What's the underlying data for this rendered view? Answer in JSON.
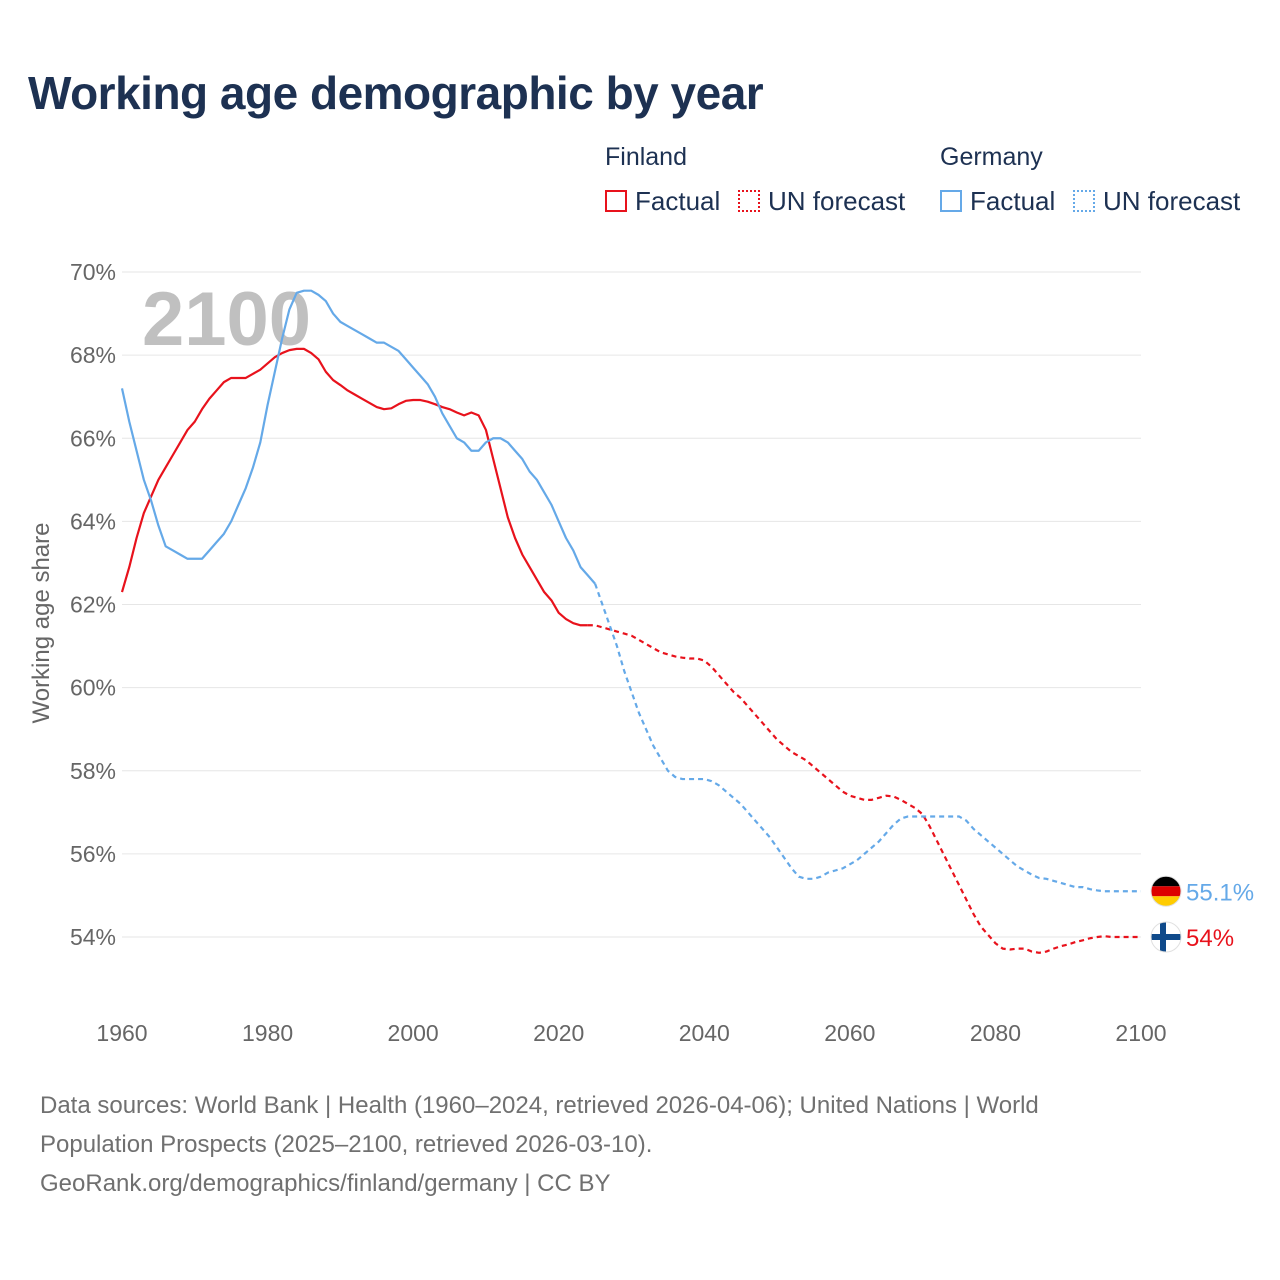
{
  "title": "Working age demographic by year",
  "legend": {
    "finland_group": "Finland",
    "germany_group": "Germany",
    "factual": "Factual",
    "un_forecast": "UN forecast"
  },
  "colors": {
    "finland": "#e8121c",
    "germany": "#65a9e8",
    "title": "#1d3152"
  },
  "footer": {
    "line1": "Data sources: World Bank | Health (1960–2024, retrieved 2026-04-06); United Nations | World",
    "line2": "Population Prospects (2025–2100, retrieved 2026-03-10).",
    "line3": "GeoRank.org/demographics/finland/germany | CC BY"
  },
  "chart_data": {
    "type": "line",
    "title": "Working age demographic by year",
    "xlabel": "",
    "ylabel": "Working age share",
    "xlim": [
      1960,
      2100
    ],
    "ylim": [
      52.5,
      70
    ],
    "y_ticks": [
      54,
      56,
      58,
      60,
      62,
      64,
      66,
      68,
      70
    ],
    "y_tick_labels": [
      "54%",
      "56%",
      "58%",
      "60%",
      "62%",
      "64%",
      "66%",
      "68%",
      "70%"
    ],
    "x_ticks": [
      1960,
      1980,
      2000,
      2020,
      2040,
      2060,
      2080,
      2100
    ],
    "x_tick_labels": [
      "1960",
      "1980",
      "2000",
      "2020",
      "2040",
      "2060",
      "2080",
      "2100"
    ],
    "year_watermark": "2100",
    "grid": true,
    "series": [
      {
        "name": "Finland",
        "color": "#e8121c",
        "end_label": "54%",
        "factual": {
          "years": [
            1960,
            1961,
            1962,
            1963,
            1964,
            1965,
            1966,
            1967,
            1968,
            1969,
            1970,
            1971,
            1972,
            1973,
            1974,
            1975,
            1976,
            1977,
            1978,
            1979,
            1980,
            1981,
            1982,
            1983,
            1984,
            1985,
            1986,
            1987,
            1988,
            1989,
            1990,
            1991,
            1992,
            1993,
            1994,
            1995,
            1996,
            1997,
            1998,
            1999,
            2000,
            2001,
            2002,
            2003,
            2004,
            2005,
            2006,
            2007,
            2008,
            2009,
            2010,
            2011,
            2012,
            2013,
            2014,
            2015,
            2016,
            2017,
            2018,
            2019,
            2020,
            2021,
            2022,
            2023,
            2024
          ],
          "values": [
            62.3,
            62.9,
            63.6,
            64.2,
            64.6,
            65.0,
            65.3,
            65.6,
            65.9,
            66.2,
            66.4,
            66.7,
            66.95,
            67.15,
            67.35,
            67.45,
            67.45,
            67.45,
            67.55,
            67.65,
            67.8,
            67.95,
            68.05,
            68.12,
            68.15,
            68.15,
            68.05,
            67.9,
            67.6,
            67.4,
            67.28,
            67.15,
            67.05,
            66.95,
            66.85,
            66.75,
            66.7,
            66.72,
            66.82,
            66.9,
            66.92,
            66.92,
            66.88,
            66.82,
            66.75,
            66.7,
            66.62,
            66.55,
            66.62,
            66.55,
            66.2,
            65.5,
            64.8,
            64.1,
            63.6,
            63.2,
            62.9,
            62.6,
            62.3,
            62.1,
            61.8,
            61.65,
            61.55,
            61.5,
            61.5
          ]
        },
        "forecast": {
          "years": [
            2024,
            2025,
            2026,
            2027,
            2028,
            2029,
            2030,
            2031,
            2032,
            2033,
            2034,
            2035,
            2036,
            2037,
            2038,
            2039,
            2040,
            2041,
            2042,
            2043,
            2044,
            2045,
            2046,
            2047,
            2048,
            2049,
            2050,
            2051,
            2052,
            2053,
            2054,
            2055,
            2056,
            2057,
            2058,
            2059,
            2060,
            2061,
            2062,
            2063,
            2064,
            2065,
            2066,
            2067,
            2068,
            2069,
            2070,
            2071,
            2072,
            2073,
            2074,
            2075,
            2076,
            2077,
            2078,
            2079,
            2080,
            2081,
            2082,
            2083,
            2084,
            2085,
            2086,
            2087,
            2088,
            2089,
            2090,
            2091,
            2092,
            2093,
            2094,
            2095,
            2096,
            2097,
            2098,
            2099,
            2100
          ],
          "values": [
            61.5,
            61.5,
            61.45,
            61.4,
            61.35,
            61.3,
            61.25,
            61.15,
            61.05,
            60.95,
            60.85,
            60.8,
            60.75,
            60.72,
            60.7,
            60.7,
            60.65,
            60.5,
            60.3,
            60.1,
            59.9,
            59.75,
            59.55,
            59.35,
            59.15,
            58.95,
            58.75,
            58.6,
            58.45,
            58.35,
            58.25,
            58.1,
            57.95,
            57.8,
            57.65,
            57.5,
            57.4,
            57.35,
            57.3,
            57.3,
            57.35,
            57.4,
            57.38,
            57.3,
            57.2,
            57.1,
            56.95,
            56.65,
            56.3,
            55.95,
            55.6,
            55.25,
            54.9,
            54.55,
            54.25,
            54.05,
            53.85,
            53.72,
            53.7,
            53.72,
            53.72,
            53.65,
            53.62,
            53.65,
            53.72,
            53.78,
            53.82,
            53.88,
            53.92,
            53.97,
            54.0,
            54.02,
            54.0,
            54.0,
            54.0,
            54.0,
            54.0
          ]
        }
      },
      {
        "name": "Germany",
        "color": "#65a9e8",
        "end_label": "55.1%",
        "factual": {
          "years": [
            1960,
            1961,
            1962,
            1963,
            1964,
            1965,
            1966,
            1967,
            1968,
            1969,
            1970,
            1971,
            1972,
            1973,
            1974,
            1975,
            1976,
            1977,
            1978,
            1979,
            1980,
            1981,
            1982,
            1983,
            1984,
            1985,
            1986,
            1987,
            1988,
            1989,
            1990,
            1991,
            1992,
            1993,
            1994,
            1995,
            1996,
            1997,
            1998,
            1999,
            2000,
            2001,
            2002,
            2003,
            2004,
            2005,
            2006,
            2007,
            2008,
            2009,
            2010,
            2011,
            2012,
            2013,
            2014,
            2015,
            2016,
            2017,
            2018,
            2019,
            2020,
            2021,
            2022,
            2023,
            2024,
            2025
          ],
          "values": [
            67.2,
            66.4,
            65.7,
            65.0,
            64.5,
            63.9,
            63.4,
            63.3,
            63.2,
            63.1,
            63.1,
            63.1,
            63.3,
            63.5,
            63.7,
            64.0,
            64.4,
            64.8,
            65.3,
            65.9,
            66.8,
            67.6,
            68.4,
            69.1,
            69.5,
            69.55,
            69.55,
            69.45,
            69.3,
            69.0,
            68.8,
            68.7,
            68.6,
            68.5,
            68.4,
            68.3,
            68.3,
            68.2,
            68.1,
            67.9,
            67.7,
            67.5,
            67.3,
            67.0,
            66.6,
            66.3,
            66.0,
            65.9,
            65.7,
            65.7,
            65.9,
            66.0,
            66.0,
            65.9,
            65.7,
            65.5,
            65.2,
            65.0,
            64.7,
            64.4,
            64.0,
            63.6,
            63.3,
            62.9,
            62.7,
            62.5
          ]
        },
        "forecast": {
          "years": [
            2025,
            2026,
            2027,
            2028,
            2029,
            2030,
            2031,
            2032,
            2033,
            2034,
            2035,
            2036,
            2037,
            2038,
            2039,
            2040,
            2041,
            2042,
            2043,
            2044,
            2045,
            2046,
            2047,
            2048,
            2049,
            2050,
            2051,
            2052,
            2053,
            2054,
            2055,
            2056,
            2057,
            2058,
            2059,
            2060,
            2061,
            2062,
            2063,
            2064,
            2065,
            2066,
            2067,
            2068,
            2069,
            2070,
            2071,
            2072,
            2073,
            2074,
            2075,
            2076,
            2077,
            2078,
            2079,
            2080,
            2081,
            2082,
            2083,
            2084,
            2085,
            2086,
            2087,
            2088,
            2089,
            2090,
            2091,
            2092,
            2093,
            2094,
            2095,
            2096,
            2097,
            2098,
            2099,
            2100
          ],
          "values": [
            62.5,
            62.0,
            61.5,
            61.0,
            60.4,
            59.9,
            59.4,
            59.0,
            58.6,
            58.3,
            58.0,
            57.85,
            57.8,
            57.8,
            57.8,
            57.8,
            57.75,
            57.65,
            57.5,
            57.35,
            57.2,
            57.0,
            56.8,
            56.6,
            56.4,
            56.15,
            55.9,
            55.65,
            55.45,
            55.4,
            55.4,
            55.45,
            55.55,
            55.6,
            55.65,
            55.75,
            55.85,
            56.0,
            56.15,
            56.3,
            56.5,
            56.7,
            56.85,
            56.9,
            56.9,
            56.9,
            56.9,
            56.9,
            56.9,
            56.9,
            56.9,
            56.8,
            56.6,
            56.45,
            56.3,
            56.15,
            56.0,
            55.85,
            55.7,
            55.6,
            55.5,
            55.42,
            55.4,
            55.35,
            55.3,
            55.25,
            55.2,
            55.2,
            55.15,
            55.12,
            55.1,
            55.1,
            55.1,
            55.1,
            55.1,
            55.1
          ]
        }
      }
    ]
  }
}
